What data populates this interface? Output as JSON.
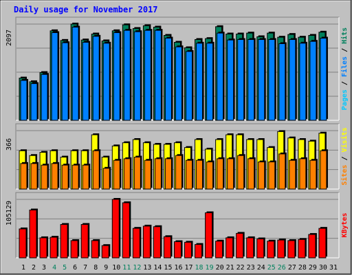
{
  "title": "Daily usage for November 2017",
  "colors": {
    "hits": "#00805c",
    "files": "#0080ff",
    "pages": "#00c8ff",
    "visits": "#ffff00",
    "sites": "#ff8000",
    "kbytes": "#ff0000",
    "title": "#0000ff",
    "weekend_day": "#00805c",
    "weekday": "#000000"
  },
  "panels": {
    "top": {
      "max_label": "2097",
      "legend": [
        {
          "text": "Pages",
          "color": "#00c8ff"
        },
        {
          "text": " / ",
          "color": "#000000"
        },
        {
          "text": "Files",
          "color": "#0080ff"
        },
        {
          "text": " / ",
          "color": "#000000"
        },
        {
          "text": "Hits",
          "color": "#00805c"
        }
      ]
    },
    "middle": {
      "max_label": "366",
      "legend": [
        {
          "text": "Sites",
          "color": "#ff8000"
        },
        {
          "text": " / ",
          "color": "#000000"
        },
        {
          "text": "Visits",
          "color": "#ffff00"
        }
      ]
    },
    "bottom": {
      "max_label": "105129",
      "legend": [
        {
          "text": "KBytes",
          "color": "#ff0000"
        }
      ]
    }
  },
  "chart_data": {
    "type": "bar",
    "title": "Daily usage for November 2017",
    "categories": [
      "1",
      "2",
      "3",
      "4",
      "5",
      "6",
      "7",
      "8",
      "9",
      "10",
      "11",
      "12",
      "13",
      "14",
      "15",
      "16",
      "17",
      "18",
      "19",
      "20",
      "21",
      "22",
      "23",
      "24",
      "25",
      "26",
      "27",
      "28",
      "29",
      "30",
      "31"
    ],
    "weekend_days": [
      "4",
      "5",
      "11",
      "12",
      "18",
      "19",
      "25",
      "26"
    ],
    "series": [
      {
        "name": "Hits",
        "panel": "top",
        "values": [
          920,
          840,
          1040,
          1950,
          1740,
          2097,
          1750,
          1880,
          1730,
          1950,
          2080,
          2000,
          2060,
          2030,
          1850,
          1700,
          1580,
          1760,
          1780,
          2040,
          1880,
          1880,
          1900,
          1820,
          1900,
          1810,
          1870,
          1810,
          1850,
          1920,
          null
        ]
      },
      {
        "name": "Files",
        "panel": "top",
        "values": [
          870,
          800,
          1000,
          1910,
          1690,
          2030,
          1700,
          1830,
          1680,
          1910,
          1960,
          1930,
          1960,
          1960,
          1790,
          1600,
          1500,
          1680,
          1680,
          1900,
          1750,
          1760,
          1760,
          1760,
          1760,
          1670,
          1760,
          1680,
          1720,
          1790,
          null
        ]
      },
      {
        "name": "Visits",
        "panel": "middle",
        "values": [
          240,
          210,
          230,
          240,
          200,
          240,
          240,
          340,
          200,
          270,
          290,
          310,
          290,
          280,
          280,
          290,
          260,
          310,
          250,
          310,
          340,
          340,
          310,
          310,
          260,
          360,
          320,
          310,
          300,
          350,
          null
        ]
      },
      {
        "name": "Sites",
        "panel": "middle",
        "values": [
          160,
          160,
          150,
          160,
          150,
          150,
          150,
          240,
          130,
          180,
          190,
          200,
          180,
          190,
          190,
          210,
          180,
          180,
          170,
          190,
          190,
          210,
          190,
          170,
          170,
          220,
          180,
          190,
          180,
          240,
          null
        ]
      },
      {
        "name": "KBytes",
        "panel": "bottom",
        "values": [
          52000,
          86000,
          36000,
          37000,
          60000,
          31000,
          60000,
          31000,
          22000,
          105129,
          99000,
          53000,
          57000,
          56000,
          38000,
          29000,
          28000,
          24000,
          81000,
          30000,
          36000,
          44000,
          36000,
          34000,
          30000,
          32000,
          31000,
          33000,
          42000,
          53000,
          null
        ]
      }
    ],
    "ylim": {
      "top": [
        0,
        2097
      ],
      "middle": [
        0,
        366
      ],
      "bottom": [
        0,
        105129
      ]
    },
    "grid": true,
    "legend_placement": "right (vertical)"
  }
}
